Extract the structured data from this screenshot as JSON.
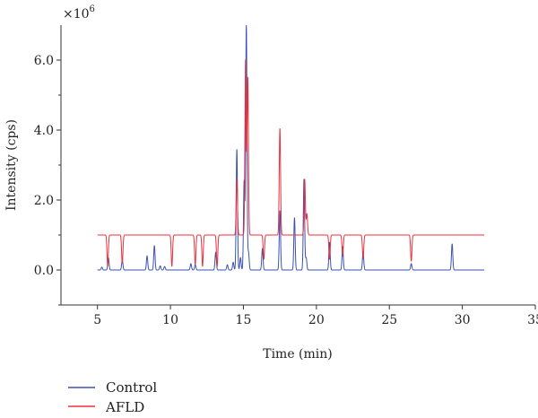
{
  "chart_data": {
    "type": "line",
    "x_label": "Time (min)",
    "y_label": "Intensity (cps)",
    "y_exponent_label": "×10",
    "y_exponent_power": "6",
    "xlim": [
      2.5,
      35
    ],
    "ylim": [
      -1.0,
      7.0
    ],
    "x_ticks": [
      5,
      10,
      15,
      20,
      25,
      30,
      35
    ],
    "x_tick_labels": [
      "5",
      "10",
      "15",
      "20",
      "25",
      "30",
      "35"
    ],
    "y_ticks": [
      0.0,
      2.0,
      4.0,
      6.0
    ],
    "y_tick_labels": [
      "0.0",
      "2.0",
      "4.0",
      "6.0"
    ],
    "legend_position": "bottom-left",
    "series": [
      {
        "name": "Control",
        "color": "#3a52b4",
        "baseline": 0.0,
        "x_start": 5.0,
        "x_end": 31.5,
        "peaks": [
          [
            5.3,
            0.08
          ],
          [
            5.75,
            0.35
          ],
          [
            6.7,
            0.28
          ],
          [
            8.4,
            0.4
          ],
          [
            8.9,
            0.7
          ],
          [
            9.3,
            0.12
          ],
          [
            9.6,
            0.1
          ],
          [
            11.4,
            0.18
          ],
          [
            11.7,
            0.15
          ],
          [
            13.1,
            0.5
          ],
          [
            13.9,
            0.15
          ],
          [
            14.3,
            0.22
          ],
          [
            14.55,
            3.45
          ],
          [
            14.8,
            0.35
          ],
          [
            15.05,
            2.55
          ],
          [
            15.2,
            7.0
          ],
          [
            15.35,
            0.5
          ],
          [
            16.3,
            0.6
          ],
          [
            17.5,
            1.7
          ],
          [
            18.5,
            1.5
          ],
          [
            19.15,
            2.6
          ],
          [
            19.3,
            0.35
          ],
          [
            20.9,
            0.8
          ],
          [
            21.8,
            0.65
          ],
          [
            23.2,
            0.5
          ],
          [
            26.5,
            0.18
          ],
          [
            29.3,
            0.75
          ]
        ]
      },
      {
        "name": "AFLD",
        "color": "#e8323c",
        "baseline": 1.0,
        "x_start": 5.0,
        "x_end": 31.5,
        "peaks": [
          [
            5.7,
            0.1
          ],
          [
            6.7,
            0.18
          ],
          [
            8.9,
            1.0
          ],
          [
            10.1,
            0.1
          ],
          [
            11.7,
            0.15
          ],
          [
            12.2,
            0.1
          ],
          [
            13.2,
            0.1
          ],
          [
            14.55,
            2.6
          ],
          [
            15.15,
            6.0
          ],
          [
            15.3,
            5.5
          ],
          [
            16.4,
            0.3
          ],
          [
            17.5,
            4.05
          ],
          [
            19.2,
            2.6
          ],
          [
            19.35,
            1.6
          ],
          [
            20.9,
            0.3
          ],
          [
            21.8,
            0.42
          ],
          [
            23.2,
            0.35
          ],
          [
            26.5,
            0.25
          ]
        ]
      }
    ]
  }
}
